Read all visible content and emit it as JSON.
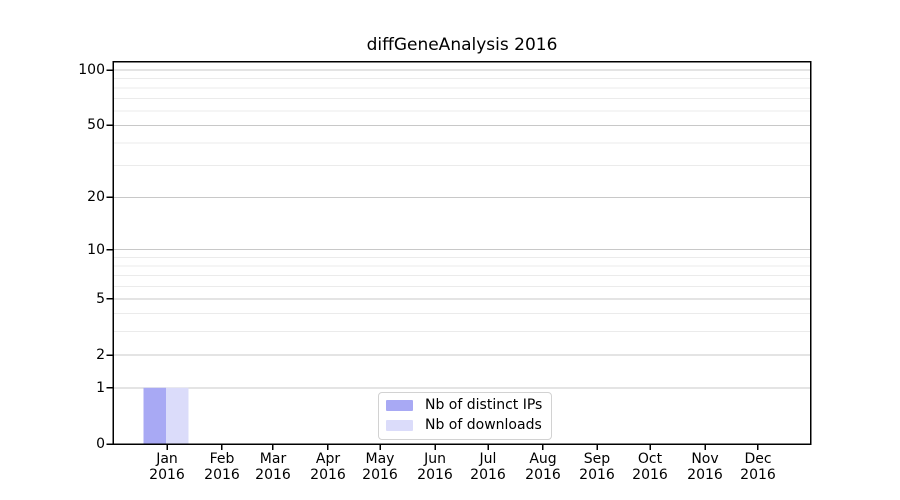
{
  "chart_data": {
    "type": "bar",
    "title": "diffGeneAnalysis 2016",
    "categories": [
      "Jan 2016",
      "Feb 2016",
      "Mar 2016",
      "Apr 2016",
      "May 2016",
      "Jun 2016",
      "Jul 2016",
      "Aug 2016",
      "Sep 2016",
      "Oct 2016",
      "Nov 2016",
      "Dec 2016"
    ],
    "series": [
      {
        "name": "Nb of distinct IPs",
        "color": "#a8a9f4",
        "values": [
          1,
          0,
          0,
          0,
          0,
          0,
          0,
          0,
          0,
          0,
          0,
          0
        ]
      },
      {
        "name": "Nb of downloads",
        "color": "#dbdcfa",
        "values": [
          1,
          0,
          0,
          0,
          0,
          0,
          0,
          0,
          0,
          0,
          0,
          0
        ]
      }
    ],
    "xlabel": "",
    "ylabel": "",
    "y_scale": "log10(value+1)",
    "y_ticks": [
      0,
      1,
      2,
      5,
      10,
      20,
      50,
      100
    ],
    "y_minor_ticks": [
      3,
      4,
      6,
      7,
      8,
      9,
      30,
      40,
      60,
      70,
      80,
      90
    ],
    "ylim": [
      0,
      110
    ],
    "grid": "horizontal-only",
    "legend": {
      "position": "bottom-center",
      "labels": [
        "Nb of distinct IPs",
        "Nb of downloads"
      ]
    }
  },
  "colors": {
    "bar_distinct_ips": "#a8a9f4",
    "bar_downloads": "#dbdcfa",
    "major_gridline": "#c8c8c8",
    "minor_gridline": "#ebebeb",
    "axis": "#000000",
    "legend_border": "#d2d2d2",
    "background": "#ffffff"
  }
}
